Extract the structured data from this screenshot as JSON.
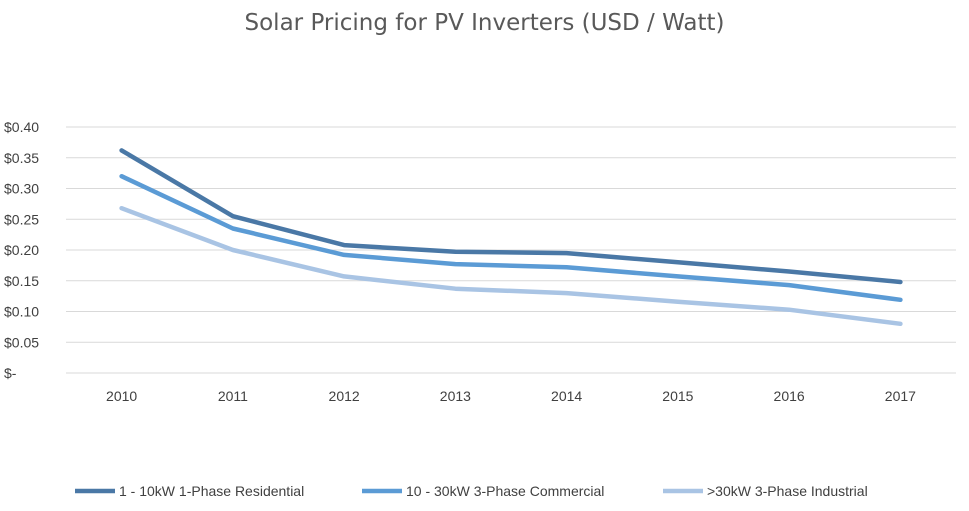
{
  "chart_data": {
    "type": "line",
    "title": "Solar Pricing for PV Inverters (USD / Watt)",
    "xlabel": "",
    "ylabel": "",
    "categories": [
      "2010",
      "2011",
      "2012",
      "2013",
      "2014",
      "2015",
      "2016",
      "2017"
    ],
    "y_ticks": [
      0.4,
      0.35,
      0.3,
      0.25,
      0.2,
      0.15,
      0.1,
      0.05,
      0
    ],
    "y_tick_labels": [
      "$0.40",
      "$0.35",
      "$0.30",
      "$0.25",
      "$0.20",
      "$0.15",
      "$0.10",
      "$0.05",
      "$-"
    ],
    "ylim": [
      0,
      0.4
    ],
    "grid": true,
    "legend_position": "bottom",
    "series": [
      {
        "name": "1 - 10kW 1-Phase Residential",
        "color": "#4a78a6",
        "values": [
          0.362,
          0.255,
          0.208,
          0.197,
          0.195,
          0.18,
          0.165,
          0.148
        ]
      },
      {
        "name": "10 - 30kW 3-Phase Commercial",
        "color": "#5b9bd5",
        "values": [
          0.32,
          0.235,
          0.192,
          0.177,
          0.172,
          0.157,
          0.143,
          0.119
        ]
      },
      {
        "name": ">30kW 3-Phase Industrial",
        "color": "#a9c4e4",
        "values": [
          0.268,
          0.2,
          0.157,
          0.137,
          0.13,
          0.116,
          0.103,
          0.08
        ]
      }
    ]
  }
}
